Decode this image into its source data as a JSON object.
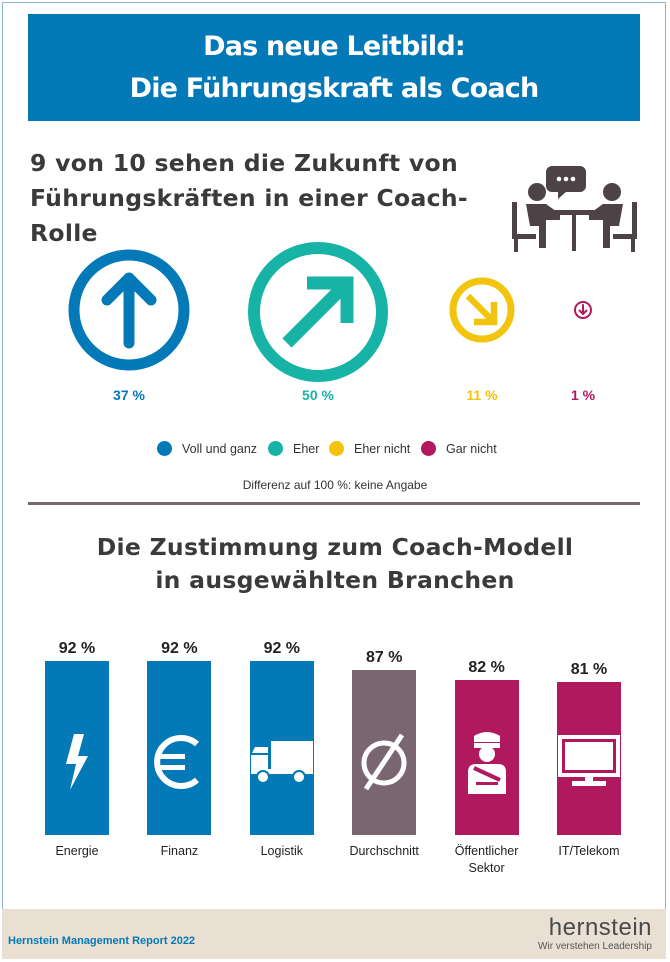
{
  "header": {
    "line1": "Das neue Leitbild:",
    "line2": "Die Führungskraft als Coach"
  },
  "section1": {
    "title_line1": "9 von 10 sehen die Zukunft von",
    "title_line2": "Führungskräften in einer Coach-Rolle"
  },
  "chart_data": [
    {
      "type": "bubble",
      "categories": [
        "Voll und ganz",
        "Eher",
        "Eher nicht",
        "Gar nicht"
      ],
      "values": [
        37,
        50,
        11,
        1
      ],
      "labels": [
        "37 %",
        "50 %",
        "11 %",
        "1 %"
      ],
      "colors": [
        "#0479b8",
        "#17b3a6",
        "#f2c40d",
        "#b0195d"
      ],
      "legend": [
        "Voll und ganz",
        "Eher",
        "Eher nicht",
        "Gar nicht"
      ],
      "note": "Differenz auf 100 %: keine Angabe"
    },
    {
      "type": "bar",
      "title_line1": "Die Zustimmung zum Coach-Modell",
      "title_line2": "in ausgewählten Branchen",
      "categories": [
        "Energie",
        "Finanz",
        "Logistik",
        "Durchschnitt",
        "Öffentlicher Sektor",
        "IT/Telekom"
      ],
      "category_lines": [
        [
          "Energie"
        ],
        [
          "Finanz"
        ],
        [
          "Logistik"
        ],
        [
          "Durchschnitt"
        ],
        [
          "Öffentlicher",
          "Sektor"
        ],
        [
          "IT/Telekom"
        ]
      ],
      "values": [
        92,
        92,
        92,
        87,
        82,
        81
      ],
      "labels": [
        "92 %",
        "92 %",
        "92 %",
        "87 %",
        "82 %",
        "81 %"
      ],
      "colors": [
        "#0479b8",
        "#0479b8",
        "#0479b8",
        "#7a6670",
        "#b0195d",
        "#b0195d"
      ],
      "icons": [
        "lightning-icon",
        "euro-icon",
        "truck-icon",
        "average-icon",
        "officer-icon",
        "monitor-icon"
      ]
    }
  ],
  "footer": {
    "report": "Hernstein Management Report 2022",
    "brand": "hernstein",
    "tagline": "Wir verstehen Leadership"
  }
}
